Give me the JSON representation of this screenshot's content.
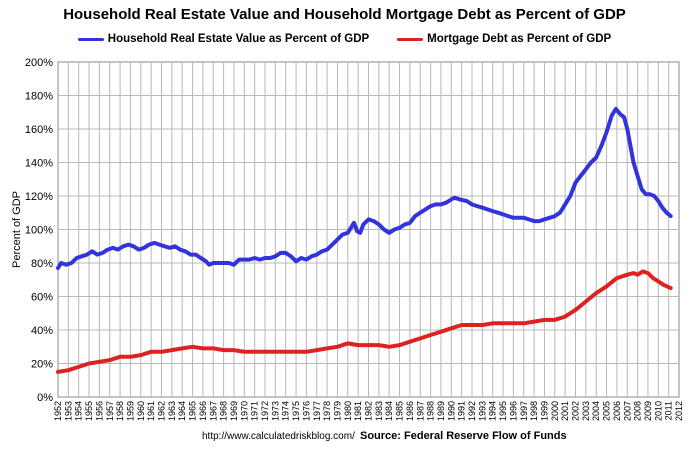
{
  "chart_data": {
    "type": "line",
    "title": "Household Real Estate Value and Household Mortgage Debt as Percent of GDP",
    "ylabel": "Percent of GDP",
    "xlabel": "",
    "ylim": [
      0,
      200
    ],
    "xlim": [
      1952,
      2012
    ],
    "ytick_labels": [
      "0%",
      "20%",
      "40%",
      "60%",
      "80%",
      "100%",
      "120%",
      "140%",
      "160%",
      "180%",
      "200%"
    ],
    "xtick_labels": [
      "1952",
      "1953",
      "1954",
      "1955",
      "1956",
      "1957",
      "1958",
      "1959",
      "1960",
      "1961",
      "1962",
      "1963",
      "1964",
      "1965",
      "1966",
      "1967",
      "1968",
      "1969",
      "1970",
      "1971",
      "1972",
      "1973",
      "1974",
      "1975",
      "1976",
      "1977",
      "1978",
      "1979",
      "1980",
      "1981",
      "1982",
      "1983",
      "1984",
      "1985",
      "1986",
      "1987",
      "1988",
      "1989",
      "1990",
      "1991",
      "1992",
      "1993",
      "1994",
      "1995",
      "1996",
      "1997",
      "1998",
      "1999",
      "2000",
      "2001",
      "2002",
      "2003",
      "2004",
      "2005",
      "2006",
      "2007",
      "2008",
      "2009",
      "2010",
      "2011",
      "2012"
    ],
    "grid": true,
    "legend_position": "top",
    "series": [
      {
        "name": "Household Real Estate Value as Percent of GDP",
        "color": "#3333dd",
        "points": [
          [
            1952.0,
            77
          ],
          [
            1952.3,
            80
          ],
          [
            1952.8,
            79
          ],
          [
            1953.3,
            80
          ],
          [
            1953.8,
            83
          ],
          [
            1954.3,
            84
          ],
          [
            1954.8,
            85
          ],
          [
            1955.3,
            87
          ],
          [
            1955.8,
            85
          ],
          [
            1956.3,
            86
          ],
          [
            1956.8,
            88
          ],
          [
            1957.3,
            89
          ],
          [
            1957.8,
            88
          ],
          [
            1958.3,
            90
          ],
          [
            1958.8,
            91
          ],
          [
            1959.3,
            90
          ],
          [
            1959.8,
            88
          ],
          [
            1960.3,
            89
          ],
          [
            1960.8,
            91
          ],
          [
            1961.3,
            92
          ],
          [
            1961.8,
            91
          ],
          [
            1962.3,
            90
          ],
          [
            1962.8,
            89
          ],
          [
            1963.3,
            90
          ],
          [
            1963.8,
            88
          ],
          [
            1964.3,
            87
          ],
          [
            1964.8,
            85
          ],
          [
            1965.3,
            85
          ],
          [
            1965.8,
            83
          ],
          [
            1966.3,
            81
          ],
          [
            1966.6,
            79
          ],
          [
            1967.0,
            80
          ],
          [
            1967.5,
            80
          ],
          [
            1968.0,
            80
          ],
          [
            1968.5,
            80
          ],
          [
            1969.0,
            79
          ],
          [
            1969.5,
            82
          ],
          [
            1970.0,
            82
          ],
          [
            1970.5,
            82
          ],
          [
            1971.0,
            83
          ],
          [
            1971.5,
            82
          ],
          [
            1972.0,
            83
          ],
          [
            1972.5,
            83
          ],
          [
            1973.0,
            84
          ],
          [
            1973.5,
            86
          ],
          [
            1974.0,
            86
          ],
          [
            1974.5,
            84
          ],
          [
            1975.0,
            81
          ],
          [
            1975.5,
            83
          ],
          [
            1976.0,
            82
          ],
          [
            1976.5,
            84
          ],
          [
            1977.0,
            85
          ],
          [
            1977.5,
            87
          ],
          [
            1978.0,
            88
          ],
          [
            1978.5,
            91
          ],
          [
            1979.0,
            94
          ],
          [
            1979.5,
            97
          ],
          [
            1980.0,
            98
          ],
          [
            1980.3,
            101
          ],
          [
            1980.6,
            104
          ],
          [
            1980.9,
            99
          ],
          [
            1981.2,
            98
          ],
          [
            1981.5,
            103
          ],
          [
            1982.0,
            106
          ],
          [
            1982.5,
            105
          ],
          [
            1983.0,
            103
          ],
          [
            1983.5,
            100
          ],
          [
            1984.0,
            98
          ],
          [
            1984.5,
            100
          ],
          [
            1985.0,
            101
          ],
          [
            1985.5,
            103
          ],
          [
            1986.0,
            104
          ],
          [
            1986.5,
            108
          ],
          [
            1987.0,
            110
          ],
          [
            1987.5,
            112
          ],
          [
            1988.0,
            114
          ],
          [
            1988.5,
            115
          ],
          [
            1989.0,
            115
          ],
          [
            1989.5,
            116
          ],
          [
            1990.0,
            118
          ],
          [
            1990.3,
            119
          ],
          [
            1990.8,
            118
          ],
          [
            1991.5,
            117
          ],
          [
            1992.0,
            115
          ],
          [
            1992.5,
            114
          ],
          [
            1993.0,
            113
          ],
          [
            1993.5,
            112
          ],
          [
            1994.0,
            111
          ],
          [
            1994.5,
            110
          ],
          [
            1995.0,
            109
          ],
          [
            1995.5,
            108
          ],
          [
            1996.0,
            107
          ],
          [
            1996.5,
            107
          ],
          [
            1997.0,
            107
          ],
          [
            1997.5,
            106
          ],
          [
            1998.0,
            105
          ],
          [
            1998.5,
            105
          ],
          [
            1999.0,
            106
          ],
          [
            1999.5,
            107
          ],
          [
            2000.0,
            108
          ],
          [
            2000.5,
            110
          ],
          [
            2001.0,
            115
          ],
          [
            2001.5,
            120
          ],
          [
            2002.0,
            128
          ],
          [
            2002.5,
            132
          ],
          [
            2003.0,
            136
          ],
          [
            2003.5,
            140
          ],
          [
            2004.0,
            143
          ],
          [
            2004.5,
            150
          ],
          [
            2005.0,
            158
          ],
          [
            2005.5,
            168
          ],
          [
            2005.9,
            172
          ],
          [
            2006.3,
            169
          ],
          [
            2006.7,
            167
          ],
          [
            2007.0,
            160
          ],
          [
            2007.3,
            150
          ],
          [
            2007.6,
            140
          ],
          [
            2008.0,
            132
          ],
          [
            2008.4,
            124
          ],
          [
            2008.8,
            121
          ],
          [
            2009.2,
            121
          ],
          [
            2009.6,
            120
          ],
          [
            2010.0,
            117
          ],
          [
            2010.4,
            113
          ],
          [
            2010.8,
            110
          ],
          [
            2011.2,
            108
          ]
        ]
      },
      {
        "name": "Mortgage Debt as Percent of GDP",
        "color": "#dd2222",
        "points": [
          [
            1952.0,
            15
          ],
          [
            1953.0,
            16
          ],
          [
            1954.0,
            18
          ],
          [
            1955.0,
            20
          ],
          [
            1956.0,
            21
          ],
          [
            1957.0,
            22
          ],
          [
            1958.0,
            24
          ],
          [
            1959.0,
            24
          ],
          [
            1960.0,
            25
          ],
          [
            1961.0,
            27
          ],
          [
            1962.0,
            27
          ],
          [
            1963.0,
            28
          ],
          [
            1964.0,
            29
          ],
          [
            1965.0,
            30
          ],
          [
            1966.0,
            29
          ],
          [
            1967.0,
            29
          ],
          [
            1968.0,
            28
          ],
          [
            1969.0,
            28
          ],
          [
            1970.0,
            27
          ],
          [
            1971.0,
            27
          ],
          [
            1972.0,
            27
          ],
          [
            1973.0,
            27
          ],
          [
            1974.0,
            27
          ],
          [
            1975.0,
            27
          ],
          [
            1976.0,
            27
          ],
          [
            1977.0,
            28
          ],
          [
            1978.0,
            29
          ],
          [
            1979.0,
            30
          ],
          [
            1980.0,
            32
          ],
          [
            1981.0,
            31
          ],
          [
            1982.0,
            31
          ],
          [
            1983.0,
            31
          ],
          [
            1984.0,
            30
          ],
          [
            1985.0,
            31
          ],
          [
            1986.0,
            33
          ],
          [
            1987.0,
            35
          ],
          [
            1988.0,
            37
          ],
          [
            1989.0,
            39
          ],
          [
            1990.0,
            41
          ],
          [
            1991.0,
            43
          ],
          [
            1992.0,
            43
          ],
          [
            1993.0,
            43
          ],
          [
            1994.0,
            44
          ],
          [
            1995.0,
            44
          ],
          [
            1996.0,
            44
          ],
          [
            1997.0,
            44
          ],
          [
            1998.0,
            45
          ],
          [
            1999.0,
            46
          ],
          [
            2000.0,
            46
          ],
          [
            2001.0,
            48
          ],
          [
            2002.0,
            52
          ],
          [
            2003.0,
            57
          ],
          [
            2004.0,
            62
          ],
          [
            2005.0,
            66
          ],
          [
            2006.0,
            71
          ],
          [
            2007.0,
            73
          ],
          [
            2007.6,
            74
          ],
          [
            2008.0,
            73
          ],
          [
            2008.5,
            75
          ],
          [
            2009.0,
            74
          ],
          [
            2009.5,
            71
          ],
          [
            2010.0,
            69
          ],
          [
            2010.5,
            67
          ],
          [
            2011.2,
            65
          ]
        ]
      }
    ]
  },
  "footer": {
    "url": "http://www.calculatedriskblog.com/",
    "source": "Source: Federal Reserve Flow of Funds"
  }
}
